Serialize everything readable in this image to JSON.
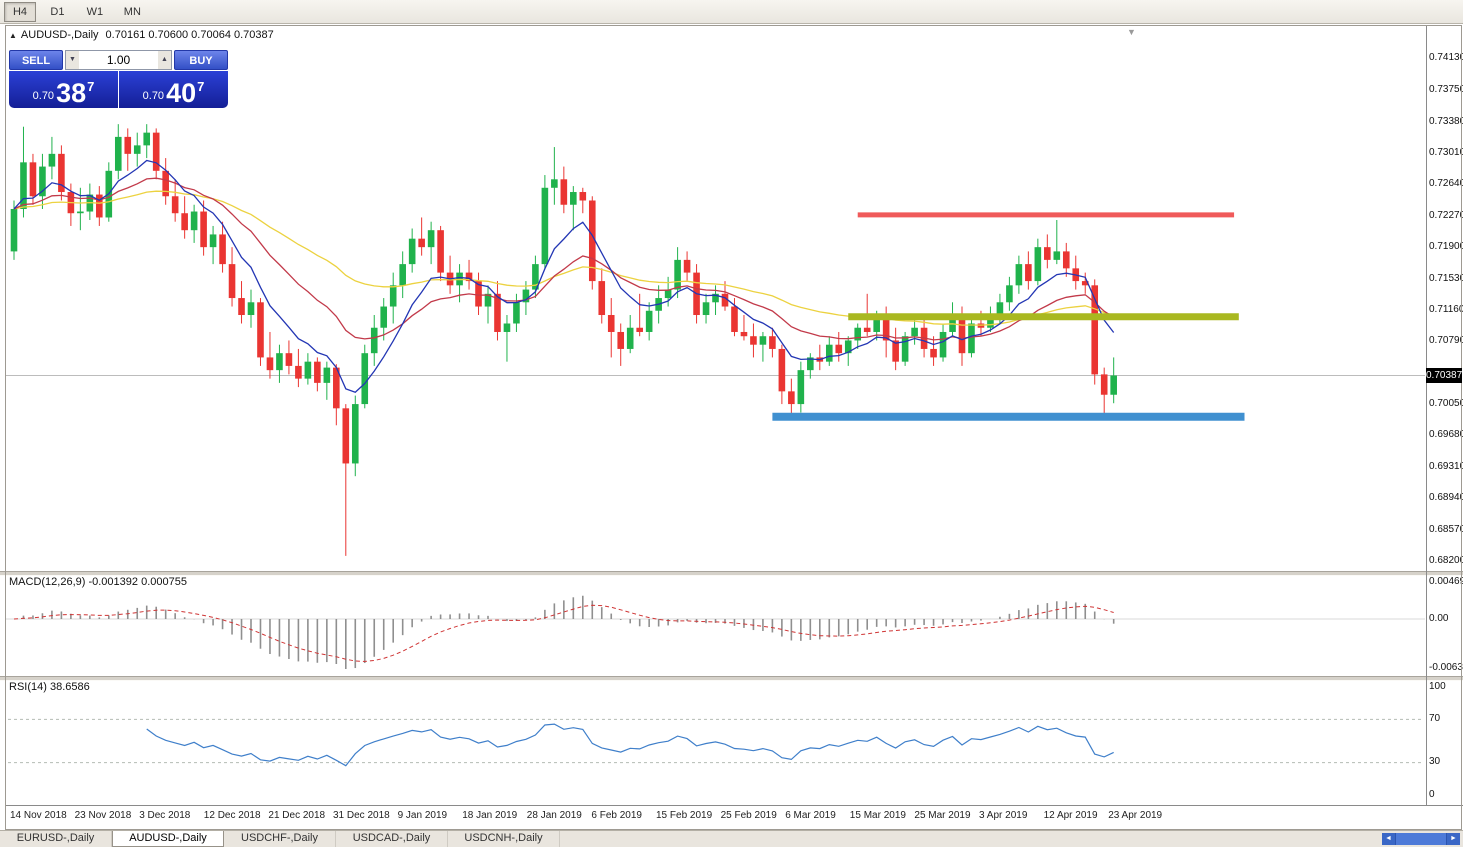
{
  "toolbar": {
    "timeframes": [
      {
        "label": "H4",
        "active": true
      },
      {
        "label": "D1",
        "active": false
      },
      {
        "label": "W1",
        "active": false
      },
      {
        "label": "MN",
        "active": false
      }
    ]
  },
  "chart_header": {
    "collapse_icon": "▲",
    "symbol": "AUDUSD-,Daily",
    "ohlc": "0.70161 0.70600 0.70064 0.70387"
  },
  "icons": {
    "shift_marker": "▼",
    "vol_down": "▼",
    "vol_up": "▲",
    "scroll_left": "◄",
    "scroll_right": "►"
  },
  "trade_panel": {
    "sell_label": "SELL",
    "buy_label": "BUY",
    "volume": "1.00",
    "bid": {
      "prefix": "0.70",
      "big": "38",
      "sup": "7"
    },
    "ask": {
      "prefix": "0.70",
      "big": "40",
      "sup": "7"
    }
  },
  "panels": {
    "macd_label": "MACD(12,26,9) -0.001392 0.000755",
    "rsi_label": "RSI(14) 38.6586"
  },
  "tabs": [
    {
      "label": "EURUSD-,Daily",
      "active": false
    },
    {
      "label": "AUDUSD-,Daily",
      "active": true
    },
    {
      "label": "USDCHF-,Daily",
      "active": false
    },
    {
      "label": "USDCAD-,Daily",
      "active": false
    },
    {
      "label": "USDCNH-,Daily",
      "active": false
    }
  ],
  "chart_data": {
    "type": "candlestick",
    "title": "AUDUSD-,Daily",
    "last_bar": {
      "open": 0.70161,
      "high": 0.706,
      "low": 0.70064,
      "close": 0.70387
    },
    "current_price": 0.70387,
    "current_price_label": "0.70387",
    "y_labels": [
      "0.74130",
      "0.73750",
      "0.73380",
      "0.73010",
      "0.72640",
      "0.72270",
      "0.71900",
      "0.71530",
      "0.71160",
      "0.70790",
      "0.70050",
      "0.69680",
      "0.69310",
      "0.68940",
      "0.68570",
      "0.68200"
    ],
    "x_labels": [
      "14 Nov 2018",
      "23 Nov 2018",
      "3 Dec 2018",
      "12 Dec 2018",
      "21 Dec 2018",
      "31 Dec 2018",
      "9 Jan 2019",
      "18 Jan 2019",
      "28 Jan 2019",
      "6 Feb 2019",
      "15 Feb 2019",
      "25 Feb 2019",
      "6 Mar 2019",
      "15 Mar 2019",
      "25 Mar 2019",
      "3 Apr 2019",
      "12 Apr 2019",
      "23 Apr 2019"
    ],
    "candles": [
      [
        0.7185,
        0.7245,
        0.7175,
        0.7235
      ],
      [
        0.7235,
        0.7332,
        0.7225,
        0.729
      ],
      [
        0.729,
        0.73,
        0.724,
        0.725
      ],
      [
        0.725,
        0.73,
        0.7235,
        0.7285
      ],
      [
        0.7285,
        0.732,
        0.727,
        0.73
      ],
      [
        0.73,
        0.731,
        0.7245,
        0.7255
      ],
      [
        0.7255,
        0.7265,
        0.7215,
        0.723
      ],
      [
        0.723,
        0.726,
        0.721,
        0.7232
      ],
      [
        0.7232,
        0.7265,
        0.7222,
        0.7252
      ],
      [
        0.7252,
        0.7262,
        0.7215,
        0.7225
      ],
      [
        0.7225,
        0.729,
        0.722,
        0.728
      ],
      [
        0.728,
        0.7335,
        0.727,
        0.732
      ],
      [
        0.732,
        0.733,
        0.728,
        0.73
      ],
      [
        0.73,
        0.7325,
        0.7285,
        0.731
      ],
      [
        0.731,
        0.7335,
        0.7295,
        0.7325
      ],
      [
        0.7325,
        0.733,
        0.727,
        0.728
      ],
      [
        0.728,
        0.7295,
        0.724,
        0.725
      ],
      [
        0.725,
        0.727,
        0.722,
        0.723
      ],
      [
        0.723,
        0.725,
        0.72,
        0.721
      ],
      [
        0.721,
        0.724,
        0.7195,
        0.7232
      ],
      [
        0.7232,
        0.7245,
        0.718,
        0.719
      ],
      [
        0.719,
        0.7215,
        0.717,
        0.7205
      ],
      [
        0.7205,
        0.722,
        0.716,
        0.717
      ],
      [
        0.717,
        0.719,
        0.712,
        0.713
      ],
      [
        0.713,
        0.715,
        0.71,
        0.711
      ],
      [
        0.711,
        0.714,
        0.7095,
        0.7125
      ],
      [
        0.7125,
        0.713,
        0.705,
        0.706
      ],
      [
        0.706,
        0.709,
        0.7035,
        0.7045
      ],
      [
        0.7045,
        0.7075,
        0.703,
        0.7065
      ],
      [
        0.7065,
        0.708,
        0.704,
        0.705
      ],
      [
        0.705,
        0.707,
        0.7025,
        0.7035
      ],
      [
        0.7035,
        0.7065,
        0.7028,
        0.7055
      ],
      [
        0.7055,
        0.706,
        0.702,
        0.703
      ],
      [
        0.703,
        0.7055,
        0.701,
        0.7048
      ],
      [
        0.7048,
        0.7052,
        0.698,
        0.7
      ],
      [
        0.7,
        0.7005,
        0.6826,
        0.6935
      ],
      [
        0.6935,
        0.7015,
        0.692,
        0.7005
      ],
      [
        0.7005,
        0.7075,
        0.7,
        0.7065
      ],
      [
        0.7065,
        0.711,
        0.705,
        0.7095
      ],
      [
        0.7095,
        0.713,
        0.708,
        0.712
      ],
      [
        0.712,
        0.716,
        0.71,
        0.7145
      ],
      [
        0.7145,
        0.7185,
        0.713,
        0.717
      ],
      [
        0.717,
        0.7212,
        0.716,
        0.72
      ],
      [
        0.72,
        0.7225,
        0.718,
        0.719
      ],
      [
        0.719,
        0.722,
        0.717,
        0.721
      ],
      [
        0.721,
        0.7215,
        0.715,
        0.716
      ],
      [
        0.716,
        0.718,
        0.7135,
        0.7145
      ],
      [
        0.7145,
        0.717,
        0.7125,
        0.716
      ],
      [
        0.716,
        0.7175,
        0.714,
        0.715
      ],
      [
        0.715,
        0.716,
        0.711,
        0.712
      ],
      [
        0.712,
        0.7145,
        0.71,
        0.7135
      ],
      [
        0.7135,
        0.715,
        0.708,
        0.709
      ],
      [
        0.709,
        0.711,
        0.7055,
        0.71
      ],
      [
        0.71,
        0.7135,
        0.709,
        0.7125
      ],
      [
        0.7125,
        0.715,
        0.711,
        0.714
      ],
      [
        0.714,
        0.718,
        0.713,
        0.717
      ],
      [
        0.717,
        0.7275,
        0.7165,
        0.726
      ],
      [
        0.726,
        0.7308,
        0.724,
        0.727
      ],
      [
        0.727,
        0.7285,
        0.723,
        0.724
      ],
      [
        0.724,
        0.7262,
        0.721,
        0.7255
      ],
      [
        0.7255,
        0.726,
        0.723,
        0.7245
      ],
      [
        0.7245,
        0.725,
        0.714,
        0.715
      ],
      [
        0.715,
        0.7165,
        0.71,
        0.711
      ],
      [
        0.711,
        0.713,
        0.706,
        0.709
      ],
      [
        0.709,
        0.71,
        0.705,
        0.707
      ],
      [
        0.707,
        0.711,
        0.7065,
        0.7095
      ],
      [
        0.7095,
        0.7135,
        0.7085,
        0.709
      ],
      [
        0.709,
        0.7125,
        0.708,
        0.7115
      ],
      [
        0.7115,
        0.7145,
        0.71,
        0.713
      ],
      [
        0.713,
        0.7155,
        0.712,
        0.714
      ],
      [
        0.714,
        0.719,
        0.713,
        0.7175
      ],
      [
        0.7175,
        0.7185,
        0.715,
        0.716
      ],
      [
        0.716,
        0.717,
        0.71,
        0.711
      ],
      [
        0.711,
        0.7135,
        0.71,
        0.7125
      ],
      [
        0.7125,
        0.7145,
        0.711,
        0.7135
      ],
      [
        0.7135,
        0.715,
        0.7115,
        0.712
      ],
      [
        0.712,
        0.713,
        0.7085,
        0.709
      ],
      [
        0.709,
        0.711,
        0.708,
        0.7085
      ],
      [
        0.7085,
        0.71,
        0.706,
        0.7075
      ],
      [
        0.7075,
        0.709,
        0.7055,
        0.7085
      ],
      [
        0.7085,
        0.7095,
        0.706,
        0.707
      ],
      [
        0.707,
        0.7075,
        0.7005,
        0.702
      ],
      [
        0.702,
        0.7035,
        0.6993,
        0.7005
      ],
      [
        0.7005,
        0.7055,
        0.6995,
        0.7045
      ],
      [
        0.7045,
        0.7065,
        0.7035,
        0.706
      ],
      [
        0.706,
        0.7075,
        0.7045,
        0.7055
      ],
      [
        0.7055,
        0.7085,
        0.705,
        0.7075
      ],
      [
        0.7075,
        0.709,
        0.7055,
        0.7065
      ],
      [
        0.7065,
        0.7085,
        0.705,
        0.708
      ],
      [
        0.708,
        0.71,
        0.707,
        0.7095
      ],
      [
        0.7095,
        0.7135,
        0.7085,
        0.709
      ],
      [
        0.709,
        0.7115,
        0.708,
        0.711
      ],
      [
        0.711,
        0.712,
        0.706,
        0.708
      ],
      [
        0.708,
        0.7095,
        0.7045,
        0.7055
      ],
      [
        0.7055,
        0.709,
        0.705,
        0.7085
      ],
      [
        0.7085,
        0.7105,
        0.7075,
        0.7095
      ],
      [
        0.7095,
        0.711,
        0.706,
        0.707
      ],
      [
        0.707,
        0.7085,
        0.705,
        0.706
      ],
      [
        0.706,
        0.71,
        0.7055,
        0.709
      ],
      [
        0.709,
        0.7125,
        0.7085,
        0.711
      ],
      [
        0.711,
        0.712,
        0.705,
        0.7065
      ],
      [
        0.7065,
        0.7105,
        0.706,
        0.71
      ],
      [
        0.71,
        0.7115,
        0.7085,
        0.7095
      ],
      [
        0.7095,
        0.712,
        0.709,
        0.711
      ],
      [
        0.711,
        0.7135,
        0.71,
        0.7125
      ],
      [
        0.7125,
        0.7155,
        0.7115,
        0.7145
      ],
      [
        0.7145,
        0.718,
        0.7135,
        0.717
      ],
      [
        0.717,
        0.7185,
        0.714,
        0.715
      ],
      [
        0.715,
        0.72,
        0.7145,
        0.719
      ],
      [
        0.719,
        0.7205,
        0.7165,
        0.7175
      ],
      [
        0.7175,
        0.7222,
        0.717,
        0.7185
      ],
      [
        0.7185,
        0.7195,
        0.7155,
        0.7165
      ],
      [
        0.7165,
        0.718,
        0.714,
        0.715
      ],
      [
        0.715,
        0.716,
        0.7135,
        0.7145
      ],
      [
        0.7145,
        0.7152,
        0.7028,
        0.704
      ],
      [
        0.704,
        0.7048,
        0.6988,
        0.7016
      ],
      [
        0.7016,
        0.706,
        0.7006,
        0.70387
      ]
    ],
    "moving_averages": [
      {
        "period": 8,
        "color": "#2336b4"
      },
      {
        "period": 20,
        "color": "#c23a4a"
      },
      {
        "period": 45,
        "color": "#ecd240"
      }
    ],
    "hlines": [
      {
        "price": 0.7228,
        "color": "#f05a5a",
        "width": 5,
        "from_bar": 89,
        "to_bar": 128.7
      },
      {
        "price": 0.7108,
        "color": "#a9b820",
        "width": 7,
        "from_bar": 88,
        "to_bar": 129.2
      },
      {
        "price": 0.699,
        "color": "#4090d0",
        "width": 8,
        "from_bar": 80,
        "to_bar": 129.8
      }
    ],
    "macd": {
      "params": [
        12,
        26,
        9
      ],
      "value": -0.001392,
      "signal": 0.000755,
      "y_labels": [
        "0.004694",
        "0.00",
        "-0.00639"
      ],
      "hist_color": "#8f8f8f",
      "signal_color": "#cf3434"
    },
    "rsi": {
      "period": 14,
      "value": 38.6586,
      "levels": [
        70,
        30
      ],
      "y_labels": [
        "100",
        "70",
        "30",
        "0"
      ],
      "line_color": "#3f7fca",
      "level_color": "#b4bcb4"
    },
    "colors": {
      "up": "#20b24c",
      "down": "#ea3532",
      "price_line": "#bcbcbc"
    }
  }
}
